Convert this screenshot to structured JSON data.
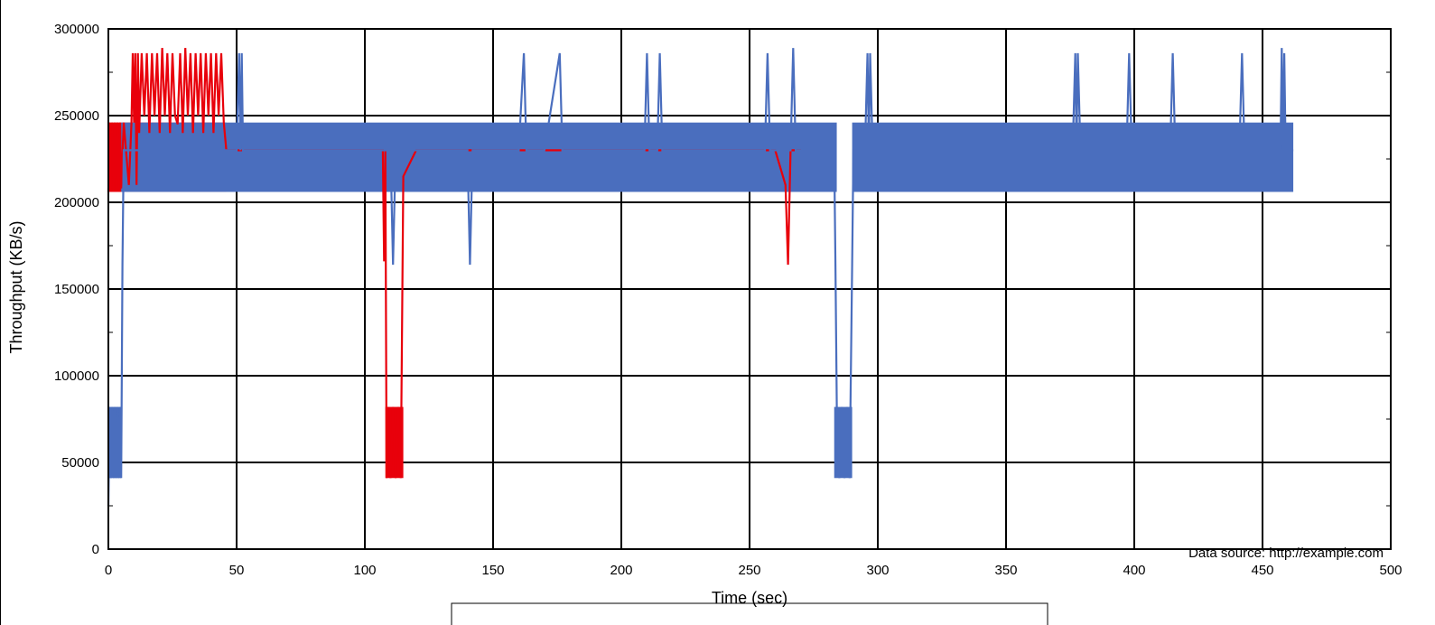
{
  "chart_data": {
    "type": "line",
    "title": "",
    "xlabel": "Time (sec)",
    "ylabel": "Throughput (KB/s)",
    "xlim": [
      0,
      500
    ],
    "ylim": [
      0,
      300000
    ],
    "x_ticks": [
      "0",
      "50",
      "100",
      "150",
      "200",
      "250",
      "300",
      "350",
      "400",
      "450",
      "500"
    ],
    "y_ticks": [
      "0",
      "50000",
      "100000",
      "150000",
      "200000",
      "250000",
      "300000"
    ],
    "grid": true,
    "source_note": "Data source: http://example.com",
    "colors": {
      "red": "#e8000b",
      "blue": "#4a6ebe"
    },
    "series": [
      {
        "color": "#e8000b",
        "x": [
          0,
          0.5,
          1,
          1.5,
          2,
          2.5,
          3,
          3.5,
          4,
          4.5,
          5,
          6,
          8,
          9,
          9.5,
          10,
          10.5,
          11,
          11.5,
          12,
          13,
          14,
          15,
          16,
          17,
          18,
          19,
          20,
          21,
          22,
          23,
          24,
          25,
          26,
          27,
          28,
          29,
          30,
          31,
          32,
          33,
          34,
          35,
          36,
          37,
          38,
          39,
          40,
          41,
          42,
          43,
          44,
          45,
          46,
          50,
          60,
          70,
          80,
          90,
          100,
          105,
          107,
          107.5,
          108,
          108.5,
          109,
          110,
          111,
          112,
          113,
          114,
          115,
          120,
          140,
          160,
          180,
          200,
          220,
          240,
          260,
          264,
          265,
          266,
          270
        ],
        "y": [
          206000,
          246000,
          206000,
          246000,
          206000,
          246000,
          206000,
          246000,
          206000,
          246000,
          208000,
          246000,
          210000,
          246000,
          286000,
          246000,
          286000,
          210000,
          286000,
          240000,
          286000,
          250000,
          286000,
          240000,
          286000,
          250000,
          286000,
          240000,
          289000,
          250000,
          286000,
          240000,
          286000,
          250000,
          245000,
          286000,
          240000,
          289000,
          250000,
          286000,
          240000,
          286000,
          250000,
          286000,
          240000,
          286000,
          250000,
          286000,
          240000,
          286000,
          250000,
          286000,
          246000,
          230000,
          230000,
          230000,
          230000,
          230000,
          230000,
          230000,
          230000,
          230000,
          166000,
          230000,
          41000,
          82000,
          41000,
          82000,
          41000,
          82000,
          41000,
          215000,
          230000,
          230000,
          230000,
          230000,
          230000,
          230000,
          230000,
          230000,
          210000,
          164000,
          230000,
          230000
        ]
      },
      {
        "color": "#4a6ebe",
        "x": [
          0,
          0.5,
          1,
          1.5,
          2,
          2.5,
          3,
          3.5,
          4,
          4.5,
          5,
          5.5,
          6,
          10,
          20,
          30,
          40,
          50,
          51,
          51.5,
          52,
          52.5,
          53,
          60,
          80,
          100,
          110,
          111,
          112,
          120,
          140,
          141,
          142,
          143,
          150,
          160,
          162,
          163,
          170,
          176,
          177,
          180,
          200,
          209,
          210,
          211,
          214,
          215,
          216,
          230,
          250,
          256,
          257,
          258,
          266,
          267,
          268,
          280,
          282,
          283,
          283.5,
          284,
          285,
          286,
          287,
          288,
          289,
          290,
          290.5,
          291,
          295,
          296,
          296.5,
          297,
          298,
          300,
          320,
          350,
          376,
          377,
          377.5,
          378,
          379,
          380,
          397,
          398,
          399,
          400,
          414,
          415,
          416,
          430,
          441,
          442,
          443,
          450,
          457,
          457.5,
          458,
          458.5,
          459,
          462
        ],
        "y": [
          25000,
          82000,
          41000,
          82000,
          41000,
          82000,
          41000,
          82000,
          41000,
          82000,
          41000,
          164000,
          230000,
          230000,
          230000,
          230000,
          230000,
          230000,
          286000,
          230000,
          286000,
          230000,
          230000,
          230000,
          230000,
          230000,
          230000,
          164000,
          230000,
          230000,
          230000,
          164000,
          230000,
          230000,
          230000,
          230000,
          286000,
          230000,
          230000,
          286000,
          230000,
          230000,
          230000,
          230000,
          286000,
          230000,
          230000,
          286000,
          230000,
          230000,
          230000,
          230000,
          286000,
          230000,
          230000,
          289000,
          230000,
          230000,
          230000,
          230000,
          164000,
          82000,
          41000,
          82000,
          41000,
          82000,
          41000,
          164000,
          230000,
          230000,
          230000,
          286000,
          230000,
          286000,
          230000,
          230000,
          230000,
          230000,
          230000,
          286000,
          230000,
          286000,
          230000,
          230000,
          230000,
          286000,
          230000,
          230000,
          230000,
          286000,
          230000,
          230000,
          230000,
          286000,
          230000,
          230000,
          230000,
          289000,
          230000,
          286000,
          230000,
          230000
        ]
      }
    ],
    "bands": [
      {
        "color": "#e8000b",
        "x0": 0,
        "x1": 46,
        "y0": 206000,
        "y1": 246000
      },
      {
        "color": "#e8000b",
        "x0": 108,
        "x1": 115,
        "y0": 41000,
        "y1": 82000
      },
      {
        "color": "#4a6ebe",
        "x0": 0,
        "x1": 5,
        "y0": 41000,
        "y1": 82000
      },
      {
        "color": "#4a6ebe",
        "x0": 5,
        "x1": 284,
        "y0": 206000,
        "y1": 246000
      },
      {
        "color": "#4a6ebe",
        "x0": 283,
        "x1": 290,
        "y0": 41000,
        "y1": 82000
      },
      {
        "color": "#4a6ebe",
        "x0": 290,
        "x1": 462,
        "y0": 206000,
        "y1": 246000
      }
    ]
  }
}
